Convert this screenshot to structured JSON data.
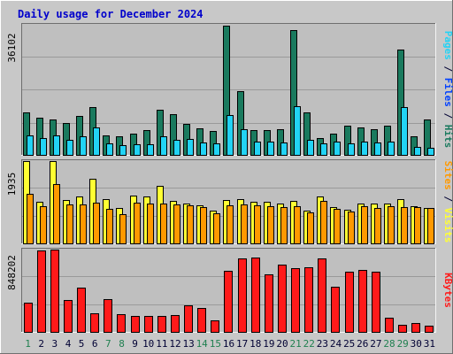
{
  "chart_data": {
    "type": "bar",
    "title": "Daily usage for December 2024",
    "x": [
      "1",
      "2",
      "3",
      "4",
      "5",
      "6",
      "7",
      "8",
      "9",
      "10",
      "11",
      "12",
      "13",
      "14",
      "15",
      "16",
      "17",
      "18",
      "19",
      "20",
      "21",
      "22",
      "23",
      "24",
      "25",
      "26",
      "27",
      "28",
      "29",
      "30",
      "31"
    ],
    "weekend_days": [
      "1",
      "7",
      "8",
      "14",
      "15",
      "21",
      "22",
      "28",
      "29"
    ],
    "colors": {
      "frame": "#c8c8c8",
      "plot_bg": "#bfbfbf",
      "title": "#0000cc",
      "pages": "#22d3f5",
      "files": "#0040ff",
      "hits": "#1a7a5e",
      "sites": "#ff9900",
      "visits": "#ffff33",
      "kbytes": "#ff1a1a",
      "weekday_label": "#000033",
      "weekend_label": "#208050"
    },
    "panels": [
      {
        "name": "top",
        "max_label": "36102",
        "ymax": 36102,
        "side_labels": [
          "Pages",
          " / ",
          "Files",
          " / ",
          "Hits"
        ],
        "side_colors": [
          "#22d3f5",
          "#000033",
          "#0040ff",
          "#000033",
          "#1a7a5e"
        ],
        "series": [
          {
            "name": "Hits",
            "values": [
              12000,
              10500,
              10000,
              9000,
              11000,
              13500,
              5700,
              5400,
              6100,
              7100,
              12800,
              11400,
              8700,
              7600,
              6900,
              35900,
              17700,
              7000,
              7000,
              7200,
              34700,
              11900,
              5000,
              6100,
              8200,
              7700,
              7200,
              8400,
              29300,
              5400,
              9900
            ]
          },
          {
            "name": "Pages",
            "values": [
              5700,
              4800,
              5500,
              4300,
              5400,
              7900,
              3300,
              2900,
              3200,
              3200,
              5400,
              4300,
              4700,
              3600,
              3300,
              11300,
              7300,
              3900,
              4000,
              3700,
              13700,
              4500,
              3500,
              4000,
              3500,
              3900,
              3700,
              3800,
              13300,
              2500,
              2100
            ]
          }
        ]
      },
      {
        "name": "middle",
        "max_label": "1935",
        "ymax": 1935,
        "side_labels": [
          "Sites",
          " / ",
          "Visits"
        ],
        "side_colors": [
          "#ff9900",
          "#000033",
          "#ffff33"
        ],
        "series": [
          {
            "name": "Visits",
            "values": [
              1935,
              990,
              1935,
              1020,
              1110,
              1530,
              1050,
              850,
              1140,
              1110,
              1350,
              1000,
              950,
              910,
              780,
              1030,
              1040,
              990,
              990,
              940,
              1000,
              780,
              1110,
              870,
              800,
              950,
              950,
              950,
              1040,
              890,
              840
            ]
          },
          {
            "name": "Sites",
            "values": [
              1180,
              890,
              1410,
              930,
              920,
              960,
              830,
              700,
              970,
              950,
              940,
              920,
              910,
              860,
              720,
              910,
              920,
              910,
              890,
              870,
              880,
              750,
              1000,
              820,
              760,
              880,
              850,
              880,
              860,
              870,
              850
            ]
          }
        ]
      },
      {
        "name": "bottom",
        "max_label": "848202",
        "ymax": 848202,
        "side_labels": [
          "KBytes"
        ],
        "side_colors": [
          "#ff1a1a"
        ],
        "series": [
          {
            "name": "KBytes",
            "values": [
              310000,
              838000,
              848202,
              335000,
              460000,
              195000,
              340000,
              190000,
              170000,
              175000,
              175000,
              180000,
              280000,
              255000,
              125000,
              630000,
              760000,
              770000,
              600000,
              695000,
              660000,
              665000,
              760000,
              470000,
              620000,
              640000,
              620000,
              155000,
              85000,
              100000,
              75000
            ]
          }
        ]
      }
    ]
  }
}
